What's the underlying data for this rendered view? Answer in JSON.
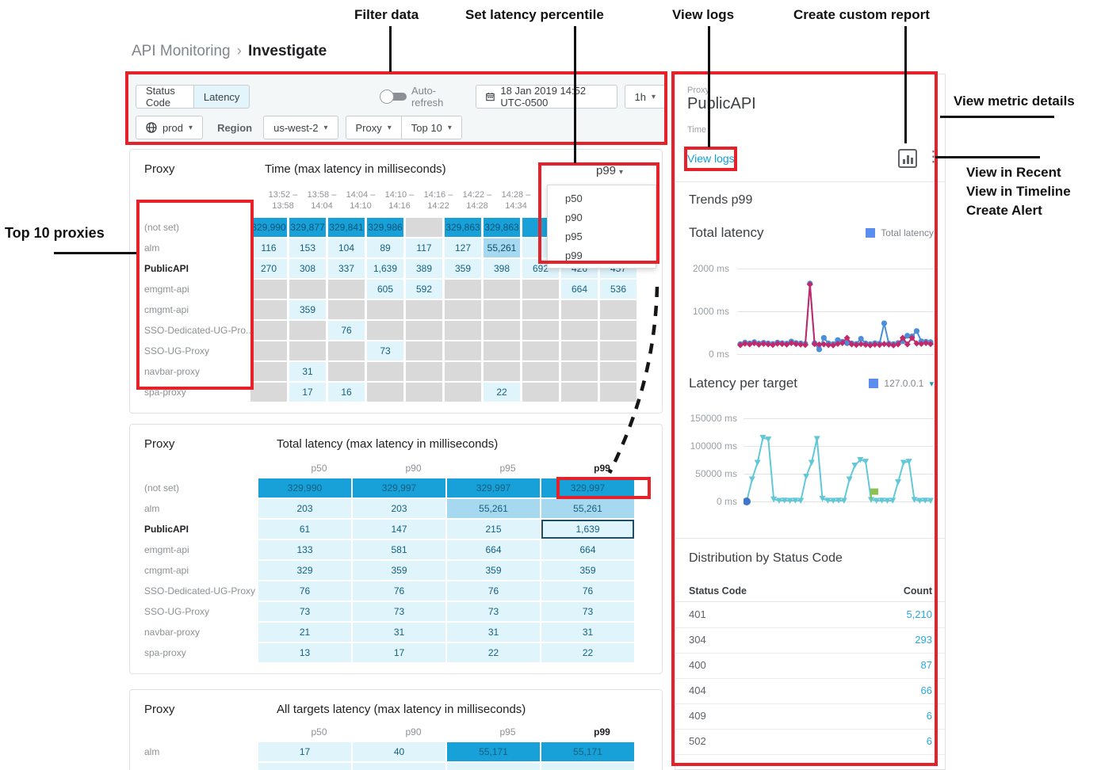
{
  "breadcrumb": {
    "parent": "API Monitoring",
    "separator": "›",
    "current": "Investigate"
  },
  "annotations": {
    "filter_data": "Filter data",
    "set_latency_percentile": "Set latency percentile",
    "view_logs": "View logs",
    "create_custom_report": "Create custom report",
    "view_metric_details": "View metric details",
    "view_in_recent": "View in Recent",
    "view_in_timeline": "View in Timeline",
    "create_alert": "Create Alert",
    "top_10_proxies": "Top 10 proxies"
  },
  "filter_bar": {
    "status_code_label": "Status Code",
    "latency_label": "Latency",
    "auto_refresh_label": "Auto-refresh",
    "datetime": "18 Jan 2019 14:52 UTC-0500",
    "range": "1h",
    "env": "prod",
    "region_label": "Region",
    "region_value": "us-west-2",
    "proxy_label": "Proxy",
    "top_label": "Top 10"
  },
  "table1": {
    "col_title": "Proxy",
    "title": "Time (max latency in milliseconds)",
    "percentile": "p99",
    "dropdown_options": [
      "p50",
      "p90",
      "p95",
      "p99"
    ],
    "time_headers": [
      [
        "13:52 –",
        "13:58"
      ],
      [
        "13:58 –",
        "14:04"
      ],
      [
        "14:04 –",
        "14:10"
      ],
      [
        "14:10 –",
        "14:16"
      ],
      [
        "14:16 –",
        "14:22"
      ],
      [
        "14:22 –",
        "14:28"
      ],
      [
        "14:28 –",
        "14:34"
      ],
      [
        "",
        ""
      ],
      [
        "",
        ""
      ],
      [
        "",
        ""
      ]
    ],
    "rows": [
      {
        "label": "(not set)",
        "bold": false,
        "cells": [
          {
            "v": "329,990",
            "c": "dark"
          },
          {
            "v": "329,877",
            "c": "dark"
          },
          {
            "v": "329,841",
            "c": "dark"
          },
          {
            "v": "329,986",
            "c": "dark"
          },
          {
            "v": "",
            "c": "empty"
          },
          {
            "v": "329,863",
            "c": "dark"
          },
          {
            "v": "329,863",
            "c": "dark"
          },
          {
            "v": "",
            "c": "dark"
          },
          {
            "v": "",
            "c": "dark"
          },
          {
            "v": "",
            "c": "dark"
          }
        ]
      },
      {
        "label": "alm",
        "bold": false,
        "cells": [
          {
            "v": "116",
            "c": "light"
          },
          {
            "v": "153",
            "c": "light"
          },
          {
            "v": "104",
            "c": "light"
          },
          {
            "v": "89",
            "c": "light"
          },
          {
            "v": "117",
            "c": "light"
          },
          {
            "v": "127",
            "c": "light"
          },
          {
            "v": "55,261",
            "c": "mid"
          },
          {
            "v": "",
            "c": "light"
          },
          {
            "v": "",
            "c": "light"
          },
          {
            "v": "",
            "c": "light"
          }
        ]
      },
      {
        "label": "PublicAPI",
        "bold": true,
        "cells": [
          {
            "v": "270",
            "c": "light"
          },
          {
            "v": "308",
            "c": "light"
          },
          {
            "v": "337",
            "c": "light"
          },
          {
            "v": "1,639",
            "c": "light"
          },
          {
            "v": "389",
            "c": "light"
          },
          {
            "v": "359",
            "c": "light"
          },
          {
            "v": "398",
            "c": "light"
          },
          {
            "v": "692",
            "c": "light"
          },
          {
            "v": "426",
            "c": "light"
          },
          {
            "v": "457",
            "c": "light"
          }
        ]
      },
      {
        "label": "emgmt-api",
        "bold": false,
        "cells": [
          {
            "v": "",
            "c": "empty"
          },
          {
            "v": "",
            "c": "empty"
          },
          {
            "v": "",
            "c": "empty"
          },
          {
            "v": "605",
            "c": "light"
          },
          {
            "v": "592",
            "c": "light"
          },
          {
            "v": "",
            "c": "empty"
          },
          {
            "v": "",
            "c": "empty"
          },
          {
            "v": "",
            "c": "empty"
          },
          {
            "v": "664",
            "c": "light"
          },
          {
            "v": "536",
            "c": "light"
          }
        ]
      },
      {
        "label": "cmgmt-api",
        "bold": false,
        "cells": [
          {
            "v": "",
            "c": "empty"
          },
          {
            "v": "359",
            "c": "light"
          },
          {
            "v": "",
            "c": "empty"
          },
          {
            "v": "",
            "c": "empty"
          },
          {
            "v": "",
            "c": "empty"
          },
          {
            "v": "",
            "c": "empty"
          },
          {
            "v": "",
            "c": "empty"
          },
          {
            "v": "",
            "c": "empty"
          },
          {
            "v": "",
            "c": "empty"
          },
          {
            "v": "",
            "c": "empty"
          }
        ]
      },
      {
        "label": "SSO-Dedicated-UG-Pro...",
        "bold": false,
        "cells": [
          {
            "v": "",
            "c": "empty"
          },
          {
            "v": "",
            "c": "empty"
          },
          {
            "v": "76",
            "c": "light"
          },
          {
            "v": "",
            "c": "empty"
          },
          {
            "v": "",
            "c": "empty"
          },
          {
            "v": "",
            "c": "empty"
          },
          {
            "v": "",
            "c": "empty"
          },
          {
            "v": "",
            "c": "empty"
          },
          {
            "v": "",
            "c": "empty"
          },
          {
            "v": "",
            "c": "empty"
          }
        ]
      },
      {
        "label": "SSO-UG-Proxy",
        "bold": false,
        "cells": [
          {
            "v": "",
            "c": "empty"
          },
          {
            "v": "",
            "c": "empty"
          },
          {
            "v": "",
            "c": "empty"
          },
          {
            "v": "73",
            "c": "light"
          },
          {
            "v": "",
            "c": "empty"
          },
          {
            "v": "",
            "c": "empty"
          },
          {
            "v": "",
            "c": "empty"
          },
          {
            "v": "",
            "c": "empty"
          },
          {
            "v": "",
            "c": "empty"
          },
          {
            "v": "",
            "c": "empty"
          }
        ]
      },
      {
        "label": "navbar-proxy",
        "bold": false,
        "cells": [
          {
            "v": "",
            "c": "empty"
          },
          {
            "v": "31",
            "c": "light"
          },
          {
            "v": "",
            "c": "empty"
          },
          {
            "v": "",
            "c": "empty"
          },
          {
            "v": "",
            "c": "empty"
          },
          {
            "v": "",
            "c": "empty"
          },
          {
            "v": "",
            "c": "empty"
          },
          {
            "v": "",
            "c": "empty"
          },
          {
            "v": "",
            "c": "empty"
          },
          {
            "v": "",
            "c": "empty"
          }
        ]
      },
      {
        "label": "spa-proxy",
        "bold": false,
        "cells": [
          {
            "v": "",
            "c": "empty"
          },
          {
            "v": "17",
            "c": "light"
          },
          {
            "v": "16",
            "c": "light"
          },
          {
            "v": "",
            "c": "empty"
          },
          {
            "v": "",
            "c": "empty"
          },
          {
            "v": "",
            "c": "empty"
          },
          {
            "v": "22",
            "c": "light"
          },
          {
            "v": "",
            "c": "empty"
          },
          {
            "v": "",
            "c": "empty"
          },
          {
            "v": "",
            "c": "empty"
          }
        ]
      }
    ]
  },
  "table2": {
    "col_title": "Proxy",
    "title": "Total latency (max latency in milliseconds)",
    "headers": [
      {
        "label": "p50",
        "bold": false
      },
      {
        "label": "p90",
        "bold": false
      },
      {
        "label": "p95",
        "bold": false
      },
      {
        "label": "p99",
        "bold": true
      }
    ],
    "rows": [
      {
        "label": "(not set)",
        "bold": false,
        "cells": [
          {
            "v": "329,990",
            "c": "dark"
          },
          {
            "v": "329,997",
            "c": "dark"
          },
          {
            "v": "329,997",
            "c": "dark"
          },
          {
            "v": "329,997",
            "c": "dark"
          }
        ]
      },
      {
        "label": "alm",
        "bold": false,
        "cells": [
          {
            "v": "203",
            "c": "light"
          },
          {
            "v": "203",
            "c": "light"
          },
          {
            "v": "55,261",
            "c": "mid"
          },
          {
            "v": "55,261",
            "c": "mid"
          }
        ]
      },
      {
        "label": "PublicAPI",
        "bold": true,
        "cells": [
          {
            "v": "61",
            "c": "light"
          },
          {
            "v": "147",
            "c": "light"
          },
          {
            "v": "215",
            "c": "light"
          },
          {
            "v": "1,639",
            "c": "light",
            "sel": true
          }
        ]
      },
      {
        "label": "emgmt-api",
        "bold": false,
        "cells": [
          {
            "v": "133",
            "c": "light"
          },
          {
            "v": "581",
            "c": "light"
          },
          {
            "v": "664",
            "c": "light"
          },
          {
            "v": "664",
            "c": "light"
          }
        ]
      },
      {
        "label": "cmgmt-api",
        "bold": false,
        "cells": [
          {
            "v": "329",
            "c": "light"
          },
          {
            "v": "359",
            "c": "light"
          },
          {
            "v": "359",
            "c": "light"
          },
          {
            "v": "359",
            "c": "light"
          }
        ]
      },
      {
        "label": "SSO-Dedicated-UG-Proxy",
        "bold": false,
        "cells": [
          {
            "v": "76",
            "c": "light"
          },
          {
            "v": "76",
            "c": "light"
          },
          {
            "v": "76",
            "c": "light"
          },
          {
            "v": "76",
            "c": "light"
          }
        ]
      },
      {
        "label": "SSO-UG-Proxy",
        "bold": false,
        "cells": [
          {
            "v": "73",
            "c": "light"
          },
          {
            "v": "73",
            "c": "light"
          },
          {
            "v": "73",
            "c": "light"
          },
          {
            "v": "73",
            "c": "light"
          }
        ]
      },
      {
        "label": "navbar-proxy",
        "bold": false,
        "cells": [
          {
            "v": "21",
            "c": "light"
          },
          {
            "v": "31",
            "c": "light"
          },
          {
            "v": "31",
            "c": "light"
          },
          {
            "v": "31",
            "c": "light"
          }
        ]
      },
      {
        "label": "spa-proxy",
        "bold": false,
        "cells": [
          {
            "v": "13",
            "c": "light"
          },
          {
            "v": "17",
            "c": "light"
          },
          {
            "v": "22",
            "c": "light"
          },
          {
            "v": "22",
            "c": "light"
          }
        ]
      }
    ]
  },
  "table3": {
    "col_title": "Proxy",
    "title": "All targets latency (max latency in milliseconds)",
    "headers": [
      {
        "label": "p50",
        "bold": false
      },
      {
        "label": "p90",
        "bold": false
      },
      {
        "label": "p95",
        "bold": false
      },
      {
        "label": "p99",
        "bold": true
      }
    ],
    "rows": [
      {
        "label": "alm",
        "bold": false,
        "cells": [
          {
            "v": "17",
            "c": "light"
          },
          {
            "v": "40",
            "c": "light"
          },
          {
            "v": "55,171",
            "c": "dark"
          },
          {
            "v": "55,171",
            "c": "dark"
          }
        ]
      },
      {
        "label": "",
        "bold": false,
        "cells": [
          {
            "v": "",
            "c": "light"
          },
          {
            "v": "",
            "c": "light"
          },
          {
            "v": "",
            "c": "light"
          },
          {
            "v": "",
            "c": "light"
          }
        ]
      }
    ]
  },
  "detail_panel": {
    "proxy_label": "Proxy",
    "proxy_value": "PublicAPI",
    "time_label": "Time",
    "view_logs": "View logs",
    "trends_title": "Trends p99",
    "chart1_title": "Total latency",
    "chart1_legend": "Total latency",
    "chart2_title": "Latency per target",
    "chart2_legend": "127.0.0.1",
    "dist_title": "Distribution by Status Code",
    "dist_headers": [
      "Status Code",
      "Count"
    ],
    "dist_rows": [
      [
        "401",
        "5,210"
      ],
      [
        "304",
        "293"
      ],
      [
        "400",
        "87"
      ],
      [
        "404",
        "66"
      ],
      [
        "409",
        "6"
      ],
      [
        "502",
        "6"
      ]
    ]
  },
  "chart_data": [
    {
      "type": "line",
      "title": "Total latency",
      "ylim": [
        0,
        2000
      ],
      "yticks": [
        "2000 ms",
        "1000 ms",
        "0 ms"
      ],
      "legend": [
        {
          "name": "Total latency",
          "color": "#5b8def"
        }
      ],
      "grid": true,
      "series": [
        {
          "name": "Total latency (blue)",
          "color": "#4a90d9",
          "marker": "circle",
          "values": [
            235,
            270,
            250,
            280,
            245,
            265,
            250,
            240,
            270,
            255,
            245,
            295,
            260,
            250,
            240,
            1650,
            255,
            110,
            380,
            250,
            235,
            330,
            290,
            255,
            250,
            240,
            360,
            250,
            235,
            255,
            245,
            720,
            245,
            235,
            260,
            300,
            430,
            415,
            540,
            300,
            290,
            280
          ]
        },
        {
          "name": "Total latency (magenta)",
          "color": "#c2296b",
          "marker": "diamond",
          "values": [
            210,
            245,
            230,
            255,
            225,
            240,
            230,
            215,
            245,
            235,
            225,
            260,
            235,
            225,
            215,
            1630,
            235,
            225,
            230,
            215,
            205,
            240,
            260,
            380,
            230,
            215,
            235,
            220,
            205,
            225,
            215,
            235,
            225,
            205,
            230,
            380,
            230,
            380,
            250,
            240,
            260,
            235
          ]
        }
      ]
    },
    {
      "type": "line",
      "title": "Latency per target",
      "ylim": [
        0,
        150000
      ],
      "yticks": [
        "150000 ms",
        "100000 ms",
        "50000 ms",
        "0 ms"
      ],
      "legend": [
        {
          "name": "127.0.0.1",
          "color": "#5b8def"
        }
      ],
      "grid": true,
      "series": [
        {
          "name": "127.0.0.1",
          "color": "#62c8d8",
          "marker": "triangle-down",
          "values": [
            0,
            40000,
            70000,
            115000,
            112000,
            4000,
            1500,
            1800,
            1500,
            1700,
            1500,
            45000,
            70000,
            113000,
            5000,
            1600,
            1500,
            1800,
            1500,
            40000,
            65000,
            75000,
            72000,
            3000,
            1500,
            1700,
            1500,
            1600,
            35000,
            70000,
            72000,
            3000,
            1500,
            1800,
            1500
          ]
        }
      ],
      "extra_markers": [
        {
          "type": "dot",
          "color": "#4176c9",
          "index": 0,
          "value": 0
        },
        {
          "type": "flag",
          "color": "#8cc152",
          "index": 23,
          "value": 12000
        }
      ]
    }
  ],
  "colors": {
    "annotation_red": "#e62129",
    "link_blue": "#0f9ed5",
    "count_blue": "#2aa7e0",
    "cell_dark": "#18a0d8",
    "cell_light": "#e0f4fb",
    "cell_mid": "#a6d9ef",
    "cell_empty": "#d9d9d9",
    "legend_blue": "#5b8def"
  }
}
